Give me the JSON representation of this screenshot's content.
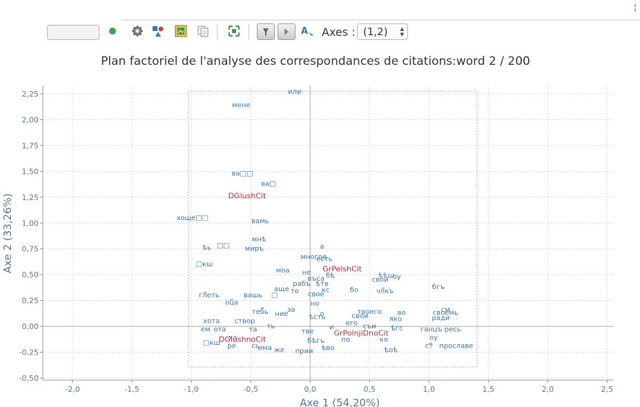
{
  "toolbar": {
    "axes_label": "Axes :",
    "axes_value": "(1,2)",
    "corner_mark": "¦"
  },
  "chart_data": {
    "type": "scatter",
    "title": "Plan factoriel de l'analyse des correspondances de citations:word 2 / 200",
    "xlabel": "Axe 1 (54,20%)",
    "ylabel": "Axe 2 (33,26%)",
    "xlim": [
      -2.25,
      2.55
    ],
    "ylim": [
      -0.52,
      2.33
    ],
    "x_ticks": [
      -2.0,
      -1.5,
      -1.0,
      -0.5,
      0.0,
      0.5,
      1.0,
      1.5,
      2.0,
      2.5
    ],
    "x_tick_labels": [
      "-2,0",
      "-1,5",
      "-1,0",
      "-0,5",
      "0,0",
      "0,5",
      "1,0",
      "1,5",
      "2,0",
      "2,5"
    ],
    "y_ticks": [
      -0.5,
      -0.25,
      0.0,
      0.25,
      0.5,
      0.75,
      1.0,
      1.25,
      1.5,
      1.75,
      2.0,
      2.25
    ],
    "y_tick_labels": [
      "-0,50",
      "-0,25",
      "0,00",
      "0,25",
      "0,50",
      "0,75",
      "1,00",
      "1,25",
      "1,50",
      "1,75",
      "2,00",
      "2,25"
    ],
    "grid": true,
    "colors": {
      "words": "#3a75b0",
      "modalities": "#b0303a",
      "axis_text": "#557799",
      "title": "#333333"
    },
    "modalities": [
      {
        "label": "DGlushCit",
        "x": -0.53,
        "y": 1.24
      },
      {
        "label": "GrPelshCit",
        "x": 0.27,
        "y": 0.53
      },
      {
        "label": "GrPolnjiDnoCit",
        "x": 0.43,
        "y": -0.09
      },
      {
        "label": "DGlushnoCit",
        "x": -0.57,
        "y": -0.15
      }
    ],
    "words": [
      {
        "label": "или",
        "x": -0.13,
        "y": 2.25
      },
      {
        "label": "мене",
        "x": -0.58,
        "y": 2.12
      },
      {
        "label": "ва□□",
        "x": -0.57,
        "y": 1.46
      },
      {
        "label": "ва□",
        "x": -0.35,
        "y": 1.36
      },
      {
        "label": "хоще□□",
        "x": -0.99,
        "y": 1.03
      },
      {
        "label": "вамь",
        "x": -0.42,
        "y": 1.0
      },
      {
        "label": "мнѣ",
        "x": -0.43,
        "y": 0.82
      },
      {
        "label": "ѣь",
        "x": -0.87,
        "y": 0.74
      },
      {
        "label": "□□",
        "x": -0.73,
        "y": 0.76
      },
      {
        "label": "миръ",
        "x": -0.47,
        "y": 0.73
      },
      {
        "label": "а",
        "x": 0.1,
        "y": 0.75
      },
      {
        "label": "многое",
        "x": 0.03,
        "y": 0.65
      },
      {
        "label": "есть",
        "x": 0.12,
        "y": 0.63
      },
      {
        "label": "□кш",
        "x": -0.89,
        "y": 0.58
      },
      {
        "label": "моа",
        "x": -0.23,
        "y": 0.52
      },
      {
        "label": "не",
        "x": -0.03,
        "y": 0.5
      },
      {
        "label": "въса",
        "x": 0.05,
        "y": 0.44
      },
      {
        "label": "бѣ",
        "x": 0.17,
        "y": 0.47
      },
      {
        "label": "ѣѣш",
        "x": 0.64,
        "y": 0.47
      },
      {
        "label": "оу",
        "x": 0.73,
        "y": 0.46
      },
      {
        "label": "свои",
        "x": 0.59,
        "y": 0.43
      },
      {
        "label": "бгъ",
        "x": 1.08,
        "y": 0.36
      },
      {
        "label": "рабъ",
        "x": -0.07,
        "y": 0.39
      },
      {
        "label": "ѣтв",
        "x": 0.1,
        "y": 0.39
      },
      {
        "label": "аще",
        "x": -0.24,
        "y": 0.34
      },
      {
        "label": "то",
        "x": -0.13,
        "y": 0.32
      },
      {
        "label": "бо",
        "x": 0.37,
        "y": 0.33
      },
      {
        "label": "чл҃къ",
        "x": 0.63,
        "y": 0.32
      },
      {
        "label": "кс",
        "x": 0.13,
        "y": 0.33
      },
      {
        "label": "свое",
        "x": 0.05,
        "y": 0.29
      },
      {
        "label": "гл҃еть",
        "x": -0.85,
        "y": 0.28
      },
      {
        "label": "вашь",
        "x": -0.48,
        "y": 0.28
      },
      {
        "label": "□",
        "x": -0.3,
        "y": 0.28
      },
      {
        "label": "оц҃а",
        "x": -0.66,
        "y": 0.21
      },
      {
        "label": "но",
        "x": 0.04,
        "y": 0.2
      },
      {
        "label": "теб҃ь",
        "x": -0.42,
        "y": 0.12
      },
      {
        "label": "за",
        "x": -0.16,
        "y": 0.14
      },
      {
        "label": "твоего",
        "x": 0.5,
        "y": 0.12
      },
      {
        "label": "во",
        "x": 0.77,
        "y": 0.11
      },
      {
        "label": "см",
        "x": 1.14,
        "y": 0.14
      },
      {
        "label": "своемь",
        "x": 1.14,
        "y": 0.11
      },
      {
        "label": "о",
        "x": 0.1,
        "y": 0.1
      },
      {
        "label": "свои",
        "x": 0.42,
        "y": 0.08
      },
      {
        "label": "ради",
        "x": 1.1,
        "y": 0.06
      },
      {
        "label": "яко",
        "x": 0.72,
        "y": 0.05
      },
      {
        "label": "ние",
        "x": -0.24,
        "y": 0.1
      },
      {
        "label": "ѣсть",
        "x": 0.06,
        "y": 0.07
      },
      {
        "label": "хота",
        "x": -0.83,
        "y": 0.03
      },
      {
        "label": "створ",
        "x": -0.55,
        "y": 0.03
      },
      {
        "label": "его",
        "x": 0.35,
        "y": 0.01
      },
      {
        "label": "съи",
        "x": 0.5,
        "y": -0.02
      },
      {
        "label": "и",
        "x": 0.18,
        "y": -0.03
      },
      {
        "label": "ть",
        "x": -0.33,
        "y": -0.02
      },
      {
        "label": "ем",
        "x": -0.88,
        "y": -0.05
      },
      {
        "label": "ота",
        "x": -0.76,
        "y": -0.05
      },
      {
        "label": "та",
        "x": -0.48,
        "y": -0.05
      },
      {
        "label": "тве",
        "x": -0.02,
        "y": -0.07
      },
      {
        "label": "ѣгс",
        "x": 0.73,
        "y": -0.04
      },
      {
        "label": "ганцъ",
        "x": 1.02,
        "y": -0.05
      },
      {
        "label": "ресь",
        "x": 1.2,
        "y": -0.05
      },
      {
        "label": "ха",
        "x": -0.65,
        "y": -0.13
      },
      {
        "label": "ко",
        "x": 0.62,
        "y": -0.15
      },
      {
        "label": "по",
        "x": 0.3,
        "y": -0.15
      },
      {
        "label": "оу",
        "x": 1.04,
        "y": -0.13
      },
      {
        "label": "бѣгъ",
        "x": 0.05,
        "y": -0.16
      },
      {
        "label": "□кш",
        "x": -0.83,
        "y": -0.18
      },
      {
        "label": "ре",
        "x": -0.66,
        "y": -0.21
      },
      {
        "label": "сь",
        "x": -0.46,
        "y": -0.21
      },
      {
        "label": "ст҃",
        "x": 1.0,
        "y": -0.21
      },
      {
        "label": "прославе",
        "x": 1.23,
        "y": -0.21
      },
      {
        "label": "има",
        "x": -0.38,
        "y": -0.23
      },
      {
        "label": "же",
        "x": -0.26,
        "y": -0.25
      },
      {
        "label": "прии",
        "x": -0.05,
        "y": -0.26
      },
      {
        "label": "ѣво",
        "x": 0.15,
        "y": -0.23
      },
      {
        "label": "ѣоѣ",
        "x": 0.68,
        "y": -0.25
      }
    ]
  }
}
